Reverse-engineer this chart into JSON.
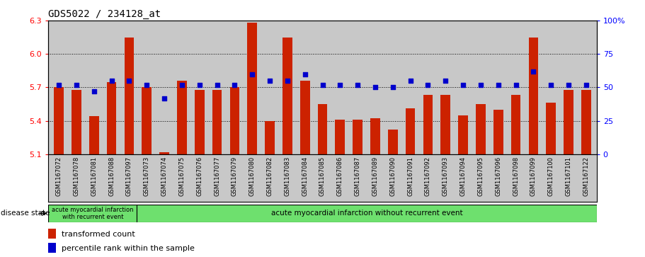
{
  "title": "GDS5022 / 234128_at",
  "samples": [
    "GSM1167072",
    "GSM1167078",
    "GSM1167081",
    "GSM1167088",
    "GSM1167097",
    "GSM1167073",
    "GSM1167074",
    "GSM1167075",
    "GSM1167076",
    "GSM1167077",
    "GSM1167079",
    "GSM1167080",
    "GSM1167082",
    "GSM1167083",
    "GSM1167084",
    "GSM1167085",
    "GSM1167086",
    "GSM1167087",
    "GSM1167089",
    "GSM1167090",
    "GSM1167091",
    "GSM1167092",
    "GSM1167093",
    "GSM1167094",
    "GSM1167095",
    "GSM1167096",
    "GSM1167098",
    "GSM1167099",
    "GSM1167100",
    "GSM1167101",
    "GSM1167122"
  ],
  "bar_values": [
    5.7,
    5.68,
    5.44,
    5.75,
    6.15,
    5.7,
    5.12,
    5.76,
    5.68,
    5.68,
    5.7,
    6.28,
    5.4,
    6.15,
    5.76,
    5.55,
    5.41,
    5.41,
    5.42,
    5.32,
    5.51,
    5.63,
    5.63,
    5.45,
    5.55,
    5.5,
    5.63,
    6.15,
    5.56,
    5.68,
    5.68
  ],
  "percentile_values": [
    52,
    52,
    47,
    55,
    55,
    52,
    42,
    52,
    52,
    52,
    52,
    60,
    55,
    55,
    60,
    52,
    52,
    52,
    50,
    50,
    55,
    52,
    55,
    52,
    52,
    52,
    52,
    62,
    52,
    52,
    52
  ],
  "group1_count": 5,
  "group1_label": "acute myocardial infarction\nwith recurrent event",
  "group2_label": "acute myocardial infarction without recurrent event",
  "bar_color": "#CC2200",
  "dot_color": "#0000CC",
  "ymin": 5.1,
  "ymax": 6.3,
  "y_ticks": [
    5.1,
    5.4,
    5.7,
    6.0,
    6.3
  ],
  "right_yticks": [
    0,
    25,
    50,
    75,
    100
  ],
  "background_color": "#C8C8C8",
  "title_fontsize": 10,
  "legend_label1": "transformed count",
  "legend_label2": "percentile rank within the sample",
  "disease_state_label": "disease state"
}
